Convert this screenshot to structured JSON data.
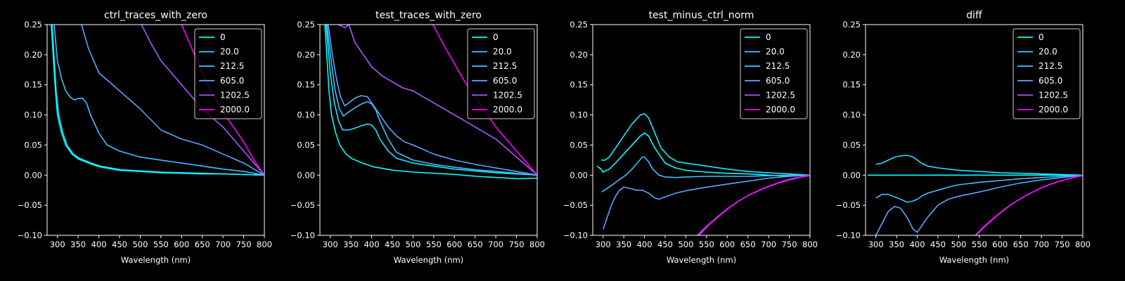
{
  "legend_labels": [
    "0",
    "20.0",
    "212.5",
    "605.0",
    "1202.5",
    "2000.0"
  ],
  "series_colors": [
    "#00ffff",
    "#19e6ff",
    "#40bfff",
    "#59a6ff",
    "#a659ff",
    "#ff00ff"
  ],
  "background_color": "#000000",
  "chart_data": [
    {
      "type": "line",
      "title": "ctrl_traces_with_zero",
      "xlabel": "Wavelength (nm)",
      "ylabel": "",
      "xlim": [
        275,
        800
      ],
      "ylim": [
        -0.1,
        0.25
      ],
      "xticks": [
        300,
        350,
        400,
        450,
        500,
        550,
        600,
        650,
        700,
        750,
        800
      ],
      "yticks": [
        -0.1,
        -0.05,
        0.0,
        0.05,
        0.1,
        0.15,
        0.2,
        0.25
      ],
      "grid": false,
      "legend_position": "top-right",
      "series": [
        {
          "name": "0",
          "x": [
            285,
            295,
            300,
            310,
            320,
            335,
            350,
            375,
            400,
            450,
            500,
            550,
            600,
            650,
            700,
            750,
            800
          ],
          "y": [
            0.25,
            0.14,
            0.1,
            0.07,
            0.05,
            0.035,
            0.027,
            0.02,
            0.014,
            0.008,
            0.006,
            0.004,
            0.003,
            0.002,
            0.002,
            0.001,
            0.0
          ]
        },
        {
          "name": "20.0",
          "x": [
            287,
            297,
            303,
            313,
            323,
            338,
            353,
            378,
            403,
            453,
            503,
            553,
            603,
            653,
            703,
            753,
            800
          ],
          "y": [
            0.25,
            0.14,
            0.1,
            0.07,
            0.05,
            0.035,
            0.028,
            0.021,
            0.015,
            0.009,
            0.007,
            0.005,
            0.004,
            0.003,
            0.002,
            0.001,
            0.0
          ]
        },
        {
          "name": "212.5",
          "x": [
            292,
            300,
            310,
            320,
            330,
            340,
            350,
            360,
            370,
            380,
            400,
            420,
            450,
            500,
            550,
            600,
            650,
            700,
            750,
            800
          ],
          "y": [
            0.25,
            0.19,
            0.16,
            0.14,
            0.13,
            0.125,
            0.127,
            0.128,
            0.12,
            0.1,
            0.07,
            0.05,
            0.04,
            0.03,
            0.025,
            0.02,
            0.015,
            0.01,
            0.006,
            0.0
          ]
        },
        {
          "name": "605.0",
          "x": [
            358,
            375,
            400,
            450,
            500,
            550,
            600,
            650,
            700,
            750,
            800
          ],
          "y": [
            0.25,
            0.21,
            0.17,
            0.14,
            0.11,
            0.075,
            0.06,
            0.05,
            0.035,
            0.02,
            0.0
          ]
        },
        {
          "name": "1202.5",
          "x": [
            503,
            525,
            550,
            600,
            650,
            700,
            750,
            800
          ],
          "y": [
            0.25,
            0.22,
            0.19,
            0.15,
            0.11,
            0.08,
            0.04,
            0.0
          ]
        },
        {
          "name": "2000.0",
          "x": [
            600,
            625,
            650,
            675,
            700,
            725,
            750,
            775,
            800
          ],
          "y": [
            0.25,
            0.21,
            0.17,
            0.135,
            0.105,
            0.08,
            0.055,
            0.025,
            0.0
          ]
        }
      ]
    },
    {
      "type": "line",
      "title": "test_traces_with_zero",
      "xlabel": "Wavelength (nm)",
      "ylabel": "",
      "xlim": [
        275,
        800
      ],
      "ylim": [
        -0.1,
        0.25
      ],
      "xticks": [
        300,
        350,
        400,
        450,
        500,
        550,
        600,
        650,
        700,
        750,
        800
      ],
      "yticks": [
        -0.1,
        -0.05,
        0.0,
        0.05,
        0.1,
        0.15,
        0.2,
        0.25
      ],
      "grid": false,
      "legend_position": "top-right",
      "series": [
        {
          "name": "0",
          "x": [
            287,
            297,
            303,
            313,
            323,
            338,
            353,
            378,
            403,
            453,
            503,
            553,
            603,
            653,
            703,
            753,
            800
          ],
          "y": [
            0.25,
            0.14,
            0.1,
            0.07,
            0.05,
            0.035,
            0.027,
            0.02,
            0.014,
            0.008,
            0.005,
            0.003,
            0.001,
            -0.002,
            -0.004,
            -0.006,
            -0.005
          ]
        },
        {
          "name": "20.0",
          "x": [
            290,
            300,
            310,
            320,
            330,
            345,
            360,
            375,
            390,
            400,
            410,
            420,
            440,
            460,
            500,
            550,
            600,
            650,
            700,
            750,
            800
          ],
          "y": [
            0.25,
            0.17,
            0.12,
            0.09,
            0.075,
            0.075,
            0.078,
            0.082,
            0.085,
            0.083,
            0.075,
            0.06,
            0.04,
            0.028,
            0.02,
            0.015,
            0.01,
            0.007,
            0.004,
            0.002,
            0.0
          ]
        },
        {
          "name": "212.5",
          "x": [
            292,
            302,
            312,
            322,
            332,
            345,
            360,
            375,
            390,
            400,
            410,
            420,
            440,
            460,
            500,
            550,
            600,
            650,
            700,
            750,
            800
          ],
          "y": [
            0.25,
            0.19,
            0.14,
            0.11,
            0.098,
            0.105,
            0.112,
            0.118,
            0.122,
            0.118,
            0.108,
            0.09,
            0.06,
            0.038,
            0.025,
            0.018,
            0.013,
            0.009,
            0.006,
            0.003,
            0.0
          ]
        },
        {
          "name": "605.0",
          "x": [
            295,
            305,
            315,
            325,
            335,
            345,
            360,
            375,
            390,
            400,
            410,
            420,
            440,
            460,
            480,
            500,
            550,
            600,
            650,
            700,
            750,
            800
          ],
          "y": [
            0.25,
            0.2,
            0.16,
            0.13,
            0.115,
            0.12,
            0.128,
            0.132,
            0.13,
            0.12,
            0.11,
            0.1,
            0.08,
            0.065,
            0.055,
            0.05,
            0.035,
            0.025,
            0.018,
            0.012,
            0.006,
            0.0
          ]
        },
        {
          "name": "1202.5",
          "x": [
            320,
            335,
            345,
            360,
            380,
            400,
            425,
            450,
            475,
            500,
            525,
            550,
            575,
            600,
            625,
            650,
            675,
            700,
            725,
            750,
            775,
            800
          ],
          "y": [
            0.25,
            0.245,
            0.25,
            0.22,
            0.2,
            0.18,
            0.165,
            0.155,
            0.145,
            0.14,
            0.13,
            0.12,
            0.11,
            0.1,
            0.09,
            0.08,
            0.07,
            0.06,
            0.045,
            0.03,
            0.015,
            0.0
          ]
        },
        {
          "name": "2000.0",
          "x": [
            548,
            575,
            600,
            625,
            650,
            675,
            700,
            725,
            750,
            775,
            800
          ],
          "y": [
            0.25,
            0.215,
            0.185,
            0.155,
            0.13,
            0.105,
            0.08,
            0.06,
            0.04,
            0.02,
            0.0
          ]
        }
      ]
    },
    {
      "type": "line",
      "title": "test_minus_ctrl_norm",
      "xlabel": "Wavelength (nm)",
      "ylabel": "",
      "xlim": [
        275,
        800
      ],
      "ylim": [
        -0.1,
        0.25
      ],
      "xticks": [
        300,
        350,
        400,
        450,
        500,
        550,
        600,
        650,
        700,
        750,
        800
      ],
      "yticks": [
        -0.1,
        -0.05,
        0.0,
        0.05,
        0.1,
        0.15,
        0.2,
        0.25
      ],
      "grid": false,
      "legend_position": "top-right",
      "series": [
        {
          "name": "0",
          "x": [
            285,
            295,
            300,
            315,
            330,
            350,
            370,
            390,
            400,
            410,
            425,
            450,
            475,
            500,
            550,
            600,
            650,
            700,
            750,
            800
          ],
          "y": [
            0.015,
            0.01,
            0.005,
            0.01,
            0.02,
            0.035,
            0.05,
            0.065,
            0.07,
            0.065,
            0.045,
            0.02,
            0.012,
            0.008,
            0.005,
            0.003,
            0.002,
            0.0,
            -0.002,
            0.0
          ]
        },
        {
          "name": "20.0",
          "x": [
            295,
            305,
            315,
            330,
            350,
            370,
            390,
            400,
            410,
            425,
            440,
            460,
            480,
            500,
            550,
            600,
            650,
            700,
            750,
            800
          ],
          "y": [
            0.025,
            0.025,
            0.03,
            0.045,
            0.065,
            0.085,
            0.1,
            0.102,
            0.095,
            0.07,
            0.045,
            0.03,
            0.022,
            0.02,
            0.015,
            0.01,
            0.006,
            0.004,
            0.002,
            0.0
          ]
        },
        {
          "name": "212.5",
          "x": [
            297,
            310,
            325,
            340,
            355,
            370,
            385,
            395,
            400,
            410,
            420,
            435,
            450,
            475,
            500,
            550,
            600,
            650,
            700,
            750,
            800
          ],
          "y": [
            -0.028,
            -0.022,
            -0.015,
            -0.007,
            0.0,
            0.01,
            0.022,
            0.03,
            0.03,
            0.022,
            0.01,
            0.0,
            -0.003,
            -0.004,
            -0.003,
            -0.002,
            -0.002,
            -0.002,
            -0.001,
            0.0,
            0.0
          ]
        },
        {
          "name": "605.0",
          "x": [
            300,
            310,
            320,
            330,
            340,
            350,
            365,
            380,
            395,
            410,
            425,
            435,
            450,
            475,
            500,
            550,
            600,
            650,
            700,
            750,
            800
          ],
          "y": [
            -0.09,
            -0.07,
            -0.05,
            -0.035,
            -0.025,
            -0.02,
            -0.022,
            -0.025,
            -0.025,
            -0.03,
            -0.038,
            -0.04,
            -0.036,
            -0.03,
            -0.026,
            -0.02,
            -0.015,
            -0.01,
            -0.005,
            -0.002,
            0.0
          ]
        },
        {
          "name": "1202.5",
          "x": [
            528,
            550,
            575,
            600,
            625,
            650,
            675,
            700,
            725,
            750,
            775,
            800
          ],
          "y": [
            -0.1,
            -0.085,
            -0.07,
            -0.056,
            -0.044,
            -0.034,
            -0.026,
            -0.019,
            -0.013,
            -0.008,
            -0.004,
            0.0
          ]
        },
        {
          "name": "2000.0",
          "x": [
            532,
            555,
            580,
            605,
            630,
            655,
            680,
            705,
            730,
            755,
            780,
            800
          ],
          "y": [
            -0.1,
            -0.083,
            -0.068,
            -0.054,
            -0.042,
            -0.032,
            -0.024,
            -0.017,
            -0.011,
            -0.006,
            -0.003,
            -0.001
          ]
        }
      ]
    },
    {
      "type": "line",
      "title": "diff",
      "xlabel": "Wavelength (nm)",
      "ylabel": "",
      "xlim": [
        275,
        800
      ],
      "ylim": [
        -0.1,
        0.25
      ],
      "xticks": [
        300,
        350,
        400,
        450,
        500,
        550,
        600,
        650,
        700,
        750,
        800
      ],
      "yticks": [
        -0.1,
        -0.05,
        0.0,
        0.05,
        0.1,
        0.15,
        0.2,
        0.25
      ],
      "grid": false,
      "legend_position": "top-right",
      "series": [
        {
          "name": "0",
          "x": [
            280,
            800
          ],
          "y": [
            0.0,
            0.0
          ]
        },
        {
          "name": "20.0",
          "x": [
            300,
            315,
            330,
            345,
            360,
            375,
            390,
            400,
            410,
            425,
            450,
            475,
            500,
            550,
            600,
            650,
            700,
            750,
            800
          ],
          "y": [
            0.018,
            0.02,
            0.025,
            0.03,
            0.032,
            0.033,
            0.03,
            0.025,
            0.02,
            0.015,
            0.012,
            0.01,
            0.008,
            0.006,
            0.004,
            0.003,
            0.002,
            0.001,
            0.0
          ]
        },
        {
          "name": "212.5",
          "x": [
            300,
            315,
            330,
            345,
            360,
            375,
            390,
            400,
            410,
            425,
            450,
            475,
            500,
            550,
            600,
            650,
            700,
            750,
            800
          ],
          "y": [
            -0.038,
            -0.032,
            -0.032,
            -0.036,
            -0.04,
            -0.045,
            -0.043,
            -0.04,
            -0.035,
            -0.03,
            -0.025,
            -0.02,
            -0.016,
            -0.012,
            -0.009,
            -0.006,
            -0.004,
            -0.002,
            0.0
          ]
        },
        {
          "name": "605.0",
          "x": [
            300,
            315,
            330,
            345,
            360,
            375,
            390,
            400,
            410,
            425,
            450,
            475,
            500,
            550,
            600,
            650,
            700,
            750,
            800
          ],
          "y": [
            -0.1,
            -0.08,
            -0.06,
            -0.052,
            -0.055,
            -0.07,
            -0.09,
            -0.095,
            -0.085,
            -0.07,
            -0.05,
            -0.04,
            -0.035,
            -0.028,
            -0.02,
            -0.013,
            -0.008,
            -0.004,
            0.0
          ]
        },
        {
          "name": "1202.5",
          "x": [
            542,
            565,
            590,
            615,
            640,
            665,
            690,
            715,
            740,
            765,
            790,
            800
          ],
          "y": [
            -0.1,
            -0.084,
            -0.069,
            -0.055,
            -0.043,
            -0.033,
            -0.024,
            -0.017,
            -0.011,
            -0.006,
            -0.002,
            0.0
          ]
        },
        {
          "name": "2000.0",
          "x": [
            540,
            560,
            585,
            610,
            635,
            660,
            685,
            710,
            735,
            760,
            785,
            800
          ],
          "y": [
            -0.1,
            -0.086,
            -0.071,
            -0.057,
            -0.045,
            -0.035,
            -0.026,
            -0.018,
            -0.012,
            -0.007,
            -0.003,
            -0.001
          ]
        }
      ]
    }
  ]
}
